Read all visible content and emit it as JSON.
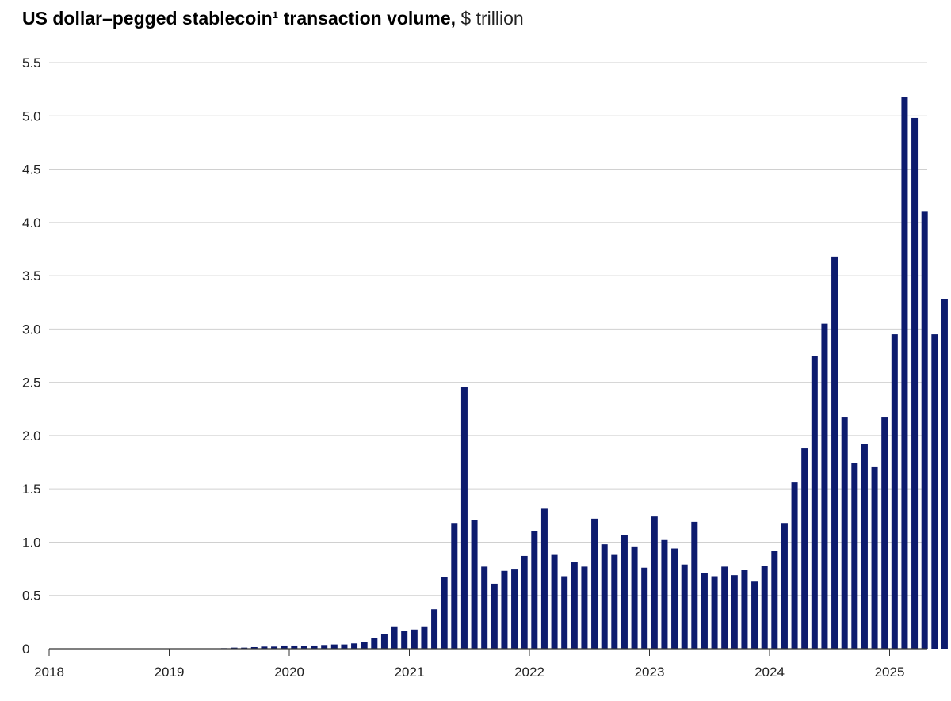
{
  "chart_data": {
    "type": "bar",
    "title": "US dollar–pegged stablecoin¹ transaction volume,",
    "title_unit": "$ trillion",
    "xlabel": "",
    "ylabel": "",
    "ylim": [
      0,
      5.5
    ],
    "yticks": [
      "0",
      "0.5",
      "1.0",
      "1.5",
      "2.0",
      "2.5",
      "3.0",
      "3.5",
      "4.0",
      "4.5",
      "5.0",
      "5.5"
    ],
    "xticks": [
      "2018",
      "2019",
      "2020",
      "2021",
      "2022",
      "2023",
      "2024",
      "2025"
    ],
    "grid": true,
    "bar_color": "#0d1b6e",
    "start": "2018-01",
    "values": [
      0.0,
      0.0,
      0.0,
      0.0,
      0.0,
      0.0,
      0.0,
      0.0,
      0.0,
      0.0,
      0.0,
      0.0,
      0.0,
      0.0,
      0.0,
      0.0,
      0.0,
      0.005,
      0.01,
      0.01,
      0.015,
      0.02,
      0.02,
      0.03,
      0.03,
      0.025,
      0.03,
      0.035,
      0.04,
      0.04,
      0.05,
      0.06,
      0.1,
      0.14,
      0.21,
      0.17,
      0.18,
      0.21,
      0.37,
      0.67,
      1.18,
      2.46,
      1.21,
      0.77,
      0.61,
      0.73,
      0.75,
      0.87,
      1.1,
      1.32,
      0.88,
      0.68,
      0.81,
      0.77,
      1.22,
      0.98,
      0.88,
      1.07,
      0.96,
      0.76,
      1.24,
      1.02,
      0.94,
      0.79,
      1.19,
      0.71,
      0.68,
      0.77,
      0.69,
      0.74,
      0.63,
      0.78,
      0.92,
      1.18,
      1.56,
      1.88,
      2.75,
      3.05,
      3.68,
      2.17,
      1.74,
      1.92,
      1.71,
      2.17,
      2.95,
      5.18,
      4.98,
      4.1,
      2.95,
      3.28
    ]
  }
}
